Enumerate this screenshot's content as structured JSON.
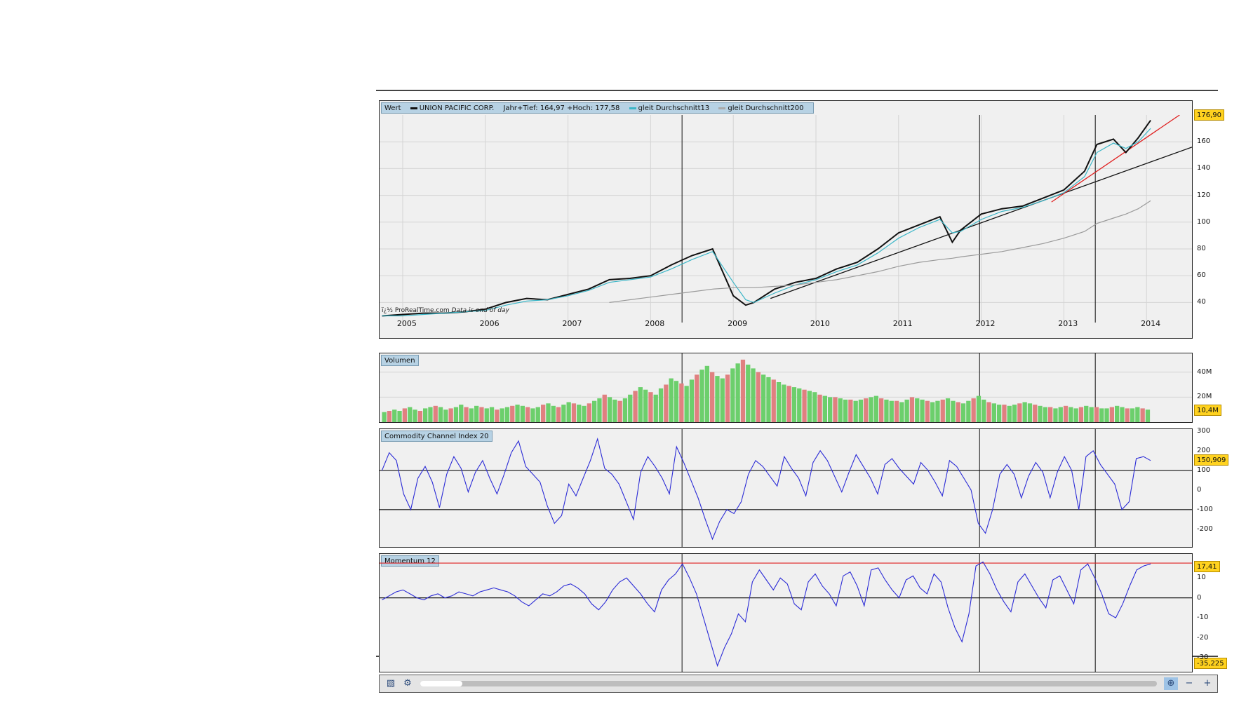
{
  "price_panel": {
    "legend": {
      "value_label": "Wert",
      "instrument": "UNION PACIFIC CORP.",
      "range_text": "Jahr+Tief: 164,97 +Hoch: 177,58",
      "ma13": "gleit Durchschnitt13",
      "ma200": "gleit Durchschnitt200"
    },
    "last_price_badge": "176,90",
    "watermark": "ï¿½ ProRealTime.com",
    "watermark_note": "Data is end of day",
    "y_ticks": [
      "160",
      "140",
      "120",
      "100",
      "80",
      "60",
      "40"
    ]
  },
  "x_axis": {
    "years": [
      "2005",
      "2006",
      "2007",
      "2008",
      "2009",
      "2010",
      "2011",
      "2012",
      "2013",
      "2014"
    ]
  },
  "volume_panel": {
    "title": "Volumen",
    "y_ticks": [
      "40M",
      "20M"
    ],
    "badge": "10,4M"
  },
  "cci_panel": {
    "title": "Commodity Channel Index 20",
    "y_ticks": [
      "300",
      "200",
      "100",
      "0",
      "-100",
      "-200"
    ],
    "badge": "150,909"
  },
  "momentum_panel": {
    "title": "Momentum 12",
    "y_ticks": [
      "10",
      "0",
      "-10",
      "-20",
      "-30"
    ],
    "badge_top": "17,41",
    "badge_bottom": "-35,225"
  },
  "toolbar": {
    "chart_icon": "chart-icon",
    "settings_icon": "tool-icon",
    "zoom_reset_icon": "zoom-fit-icon",
    "zoom_out_icon": "zoom-out-icon",
    "zoom_in_icon": "zoom-in-icon"
  },
  "chart_data": [
    {
      "type": "line",
      "title": "UNION PACIFIC CORP.",
      "xlabel": "",
      "ylabel": "",
      "x": [
        2004.75,
        2005.0,
        2005.25,
        2005.5,
        2005.75,
        2006.0,
        2006.25,
        2006.5,
        2006.75,
        2007.0,
        2007.25,
        2007.5,
        2007.75,
        2008.0,
        2008.25,
        2008.5,
        2008.75,
        2009.0,
        2009.15,
        2009.25,
        2009.5,
        2009.75,
        2010.0,
        2010.25,
        2010.5,
        2010.75,
        2011.0,
        2011.25,
        2011.5,
        2011.65,
        2011.75,
        2012.0,
        2012.25,
        2012.5,
        2012.75,
        2013.0,
        2013.25,
        2013.4,
        2013.6,
        2013.75,
        2013.9,
        2014.05
      ],
      "series": [
        {
          "name": "UNION PACIFIC CORP.",
          "values": [
            30,
            31,
            32,
            32,
            33,
            35,
            40,
            43,
            42,
            46,
            50,
            57,
            58,
            60,
            68,
            75,
            80,
            45,
            38,
            40,
            50,
            55,
            58,
            65,
            70,
            80,
            92,
            98,
            104,
            85,
            94,
            106,
            110,
            112,
            118,
            124,
            138,
            158,
            162,
            152,
            163,
            176
          ]
        },
        {
          "name": "gleit Durchschnitt13",
          "values": [
            30,
            30,
            31,
            32,
            33,
            34,
            38,
            41,
            42,
            45,
            49,
            55,
            57,
            59,
            65,
            72,
            78,
            55,
            42,
            40,
            47,
            53,
            57,
            63,
            68,
            77,
            88,
            96,
            102,
            92,
            93,
            102,
            108,
            111,
            116,
            122,
            134,
            152,
            159,
            155,
            160,
            170
          ]
        },
        {
          "name": "gleit Durchschnitt200",
          "values": [
            null,
            null,
            null,
            null,
            null,
            null,
            null,
            null,
            null,
            null,
            null,
            40,
            42,
            44,
            46,
            48,
            50,
            51,
            51,
            51,
            52,
            53,
            55,
            57,
            60,
            63,
            67,
            70,
            72,
            73,
            74,
            76,
            78,
            81,
            84,
            88,
            93,
            99,
            103,
            106,
            110,
            116
          ]
        }
      ],
      "ylim": [
        25,
        180
      ]
    },
    {
      "type": "bar",
      "title": "Volumen",
      "ylim": [
        0,
        55
      ],
      "y_unit": "M",
      "values_note": "weekly volume in millions",
      "x_start": 2004.75,
      "x_end": 2014.05,
      "values": [
        8,
        9,
        10,
        9,
        11,
        12,
        10,
        9,
        11,
        12,
        13,
        12,
        10,
        11,
        12,
        14,
        12,
        11,
        13,
        12,
        11,
        12,
        10,
        11,
        12,
        13,
        14,
        13,
        12,
        11,
        12,
        14,
        15,
        13,
        12,
        14,
        16,
        15,
        14,
        13,
        15,
        17,
        19,
        22,
        20,
        18,
        17,
        19,
        22,
        25,
        28,
        26,
        24,
        22,
        27,
        30,
        35,
        33,
        31,
        29,
        34,
        38,
        42,
        45,
        40,
        37,
        35,
        38,
        43,
        47,
        50,
        46,
        43,
        40,
        38,
        36,
        34,
        32,
        30,
        29,
        28,
        27,
        26,
        25,
        24,
        22,
        21,
        20,
        20,
        19,
        18,
        18,
        17,
        18,
        19,
        20,
        21,
        19,
        18,
        17,
        17,
        16,
        18,
        20,
        19,
        18,
        17,
        16,
        17,
        18,
        19,
        17,
        16,
        15,
        17,
        19,
        21,
        18,
        16,
        15,
        14,
        14,
        13,
        14,
        15,
        16,
        15,
        14,
        13,
        12,
        12,
        11,
        12,
        13,
        12,
        11,
        12,
        13,
        12,
        12,
        11,
        11,
        12,
        13,
        12,
        11,
        11,
        12,
        11,
        10
      ]
    },
    {
      "type": "line",
      "title": "Commodity Channel Index 20",
      "ylim": [
        -290,
        310
      ],
      "x_start": 2004.75,
      "x_end": 2014.05,
      "series": [
        {
          "name": "Commodity Channel Index 20",
          "values": [
            100,
            190,
            150,
            -20,
            -100,
            60,
            120,
            40,
            -90,
            80,
            170,
            110,
            -10,
            90,
            150,
            60,
            -20,
            80,
            190,
            250,
            120,
            80,
            40,
            -80,
            -170,
            -130,
            30,
            -30,
            60,
            150,
            260,
            110,
            80,
            30,
            -60,
            -150,
            90,
            170,
            120,
            60,
            -20,
            220,
            140,
            50,
            -40,
            -150,
            -250,
            -160,
            -100,
            -120,
            -60,
            80,
            150,
            120,
            70,
            20,
            170,
            110,
            60,
            -30,
            140,
            200,
            150,
            70,
            -10,
            90,
            180,
            120,
            60,
            -20,
            130,
            160,
            110,
            70,
            30,
            140,
            100,
            40,
            -30,
            150,
            120,
            60,
            0,
            -170,
            -220,
            -100,
            80,
            130,
            80,
            -40,
            70,
            140,
            90,
            -40,
            90,
            170,
            100,
            -100,
            170,
            200,
            130,
            80,
            30,
            -100,
            -60,
            160,
            170,
            150
          ]
        }
      ]
    },
    {
      "type": "line",
      "title": "Momentum 12",
      "ylim": [
        -37,
        22
      ],
      "x_start": 2004.75,
      "x_end": 2014.05,
      "series": [
        {
          "name": "Momentum 12",
          "values": [
            -1,
            1,
            3,
            4,
            2,
            0,
            -1,
            1,
            2,
            0,
            1,
            3,
            2,
            1,
            3,
            4,
            5,
            4,
            3,
            1,
            -2,
            -4,
            -1,
            2,
            1,
            3,
            6,
            7,
            5,
            2,
            -3,
            -6,
            -2,
            4,
            8,
            10,
            6,
            2,
            -3,
            -7,
            4,
            9,
            12,
            17,
            10,
            2,
            -10,
            -22,
            -34,
            -25,
            -18,
            -8,
            -12,
            8,
            14,
            9,
            4,
            10,
            7,
            -3,
            -6,
            8,
            12,
            6,
            2,
            -4,
            11,
            13,
            6,
            -4,
            14,
            15,
            9,
            4,
            0,
            9,
            11,
            5,
            2,
            12,
            8,
            -5,
            -15,
            -22,
            -8,
            16,
            18,
            12,
            4,
            -2,
            -7,
            8,
            12,
            6,
            0,
            -5,
            9,
            11,
            4,
            -3,
            14,
            17,
            10,
            2,
            -8,
            -10,
            -3,
            6,
            14,
            16,
            17
          ]
        }
      ]
    }
  ]
}
